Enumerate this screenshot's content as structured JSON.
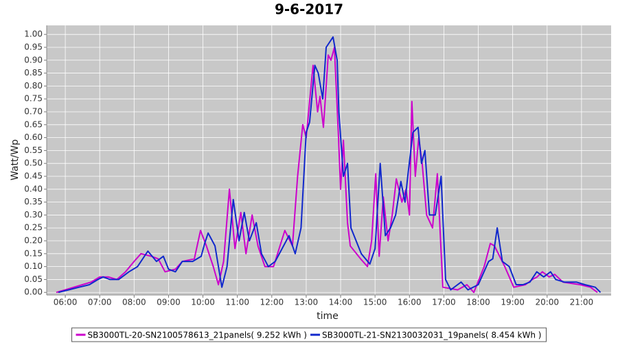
{
  "chart_data": {
    "type": "line",
    "title": "9-6-2017",
    "x_label": "time",
    "y_label": "Watt/Wp",
    "xlim": [
      5.46,
      21.86
    ],
    "ylim": [
      -0.01,
      1.035
    ],
    "xticks": [
      {
        "value": 6,
        "label": "06:00"
      },
      {
        "value": 7,
        "label": "07:00"
      },
      {
        "value": 8,
        "label": "08:00"
      },
      {
        "value": 9,
        "label": "09:00"
      },
      {
        "value": 10,
        "label": "10:00"
      },
      {
        "value": 11,
        "label": "11:00"
      },
      {
        "value": 12,
        "label": "12:00"
      },
      {
        "value": 13,
        "label": "13:00"
      },
      {
        "value": 14,
        "label": "14:00"
      },
      {
        "value": 15,
        "label": "15:00"
      },
      {
        "value": 16,
        "label": "16:00"
      },
      {
        "value": 17,
        "label": "17:00"
      },
      {
        "value": 18,
        "label": "18:00"
      },
      {
        "value": 19,
        "label": "19:00"
      },
      {
        "value": 20,
        "label": "20:00"
      },
      {
        "value": 21,
        "label": "21:00"
      }
    ],
    "yticks": [
      {
        "value": 0,
        "label": "0.00"
      },
      {
        "value": 0.05,
        "label": "0.05"
      },
      {
        "value": 0.1,
        "label": "0.10"
      },
      {
        "value": 0.15,
        "label": "0.15"
      },
      {
        "value": 0.2,
        "label": "0.20"
      },
      {
        "value": 0.25,
        "label": "0.25"
      },
      {
        "value": 0.3,
        "label": "0.30"
      },
      {
        "value": 0.35,
        "label": "0.35"
      },
      {
        "value": 0.4,
        "label": "0.40"
      },
      {
        "value": 0.45,
        "label": "0.45"
      },
      {
        "value": 0.5,
        "label": "0.50"
      },
      {
        "value": 0.55,
        "label": "0.55"
      },
      {
        "value": 0.6,
        "label": "0.60"
      },
      {
        "value": 0.65,
        "label": "0.65"
      },
      {
        "value": 0.7,
        "label": "0.70"
      },
      {
        "value": 0.75,
        "label": "0.75"
      },
      {
        "value": 0.8,
        "label": "0.80"
      },
      {
        "value": 0.85,
        "label": "0.85"
      },
      {
        "value": 0.9,
        "label": "0.90"
      },
      {
        "value": 0.95,
        "label": "0.95"
      },
      {
        "value": 1,
        "label": "1.00"
      }
    ],
    "grid": true,
    "legend_position": "bottom",
    "series": [
      {
        "name": "SB3000TL-20-SN2100578613_21panels( 9.252 kWh )",
        "color": "#cc00cc",
        "x": [
          5.74,
          6.0,
          6.25,
          6.5,
          6.75,
          7.0,
          7.25,
          7.5,
          7.75,
          8.0,
          8.2,
          8.5,
          8.7,
          8.9,
          9.2,
          9.4,
          9.75,
          9.93,
          10.1,
          10.3,
          10.45,
          10.6,
          10.77,
          10.93,
          11.1,
          11.25,
          11.43,
          11.6,
          11.8,
          12.05,
          12.38,
          12.6,
          12.75,
          12.9,
          13.0,
          13.2,
          13.33,
          13.4,
          13.5,
          13.64,
          13.72,
          13.82,
          13.94,
          14.0,
          14.08,
          14.2,
          14.28,
          14.58,
          14.78,
          14.9,
          15.02,
          15.12,
          15.24,
          15.38,
          15.5,
          15.62,
          15.78,
          15.9,
          16.0,
          16.07,
          16.17,
          16.27,
          16.37,
          16.5,
          16.67,
          16.81,
          16.97,
          17.4,
          17.67,
          17.87,
          18.17,
          18.35,
          18.47,
          18.77,
          19.03,
          19.37,
          19.57,
          19.71,
          19.86,
          20.06,
          20.22,
          20.46,
          20.96,
          21.26,
          21.46
        ],
        "values": [
          0.0,
          0.01,
          0.02,
          0.03,
          0.04,
          0.06,
          0.06,
          0.05,
          0.08,
          0.12,
          0.15,
          0.14,
          0.13,
          0.08,
          0.09,
          0.12,
          0.13,
          0.24,
          0.18,
          0.1,
          0.03,
          0.12,
          0.4,
          0.17,
          0.31,
          0.15,
          0.3,
          0.18,
          0.1,
          0.1,
          0.24,
          0.18,
          0.45,
          0.65,
          0.6,
          0.88,
          0.7,
          0.76,
          0.64,
          0.92,
          0.9,
          0.95,
          0.6,
          0.4,
          0.59,
          0.27,
          0.18,
          0.13,
          0.1,
          0.2,
          0.46,
          0.14,
          0.37,
          0.2,
          0.3,
          0.44,
          0.35,
          0.4,
          0.3,
          0.74,
          0.45,
          0.6,
          0.5,
          0.3,
          0.25,
          0.46,
          0.02,
          0.01,
          0.03,
          0.0,
          0.1,
          0.19,
          0.18,
          0.1,
          0.02,
          0.03,
          0.05,
          0.06,
          0.08,
          0.06,
          0.07,
          0.04,
          0.03,
          0.02,
          0.0
        ]
      },
      {
        "name": "SB3000TL-21-SN2130032031_19panels( 8.454 kWh )",
        "color": "#1028cc",
        "x": [
          5.8,
          6.1,
          6.4,
          6.7,
          6.95,
          7.1,
          7.3,
          7.55,
          7.85,
          8.1,
          8.3,
          8.4,
          8.65,
          8.85,
          9.0,
          9.2,
          9.4,
          9.7,
          9.95,
          10.05,
          10.15,
          10.35,
          10.55,
          10.7,
          10.88,
          11.05,
          11.2,
          11.35,
          11.55,
          11.7,
          11.9,
          12.1,
          12.5,
          12.68,
          12.85,
          13.0,
          13.1,
          13.25,
          13.35,
          13.48,
          13.58,
          13.78,
          13.9,
          13.95,
          14.08,
          14.2,
          14.3,
          14.45,
          14.6,
          14.85,
          15.0,
          15.15,
          15.3,
          15.45,
          15.6,
          15.75,
          15.87,
          15.95,
          16.1,
          16.25,
          16.35,
          16.45,
          16.58,
          16.75,
          16.92,
          17.05,
          17.2,
          17.5,
          17.7,
          18.0,
          18.3,
          18.42,
          18.55,
          18.7,
          18.9,
          19.1,
          19.3,
          19.5,
          19.7,
          19.9,
          20.1,
          20.25,
          20.5,
          20.85,
          21.1,
          21.4,
          21.55
        ],
        "values": [
          0.0,
          0.01,
          0.02,
          0.03,
          0.05,
          0.06,
          0.05,
          0.05,
          0.08,
          0.1,
          0.14,
          0.16,
          0.12,
          0.14,
          0.09,
          0.08,
          0.12,
          0.12,
          0.14,
          0.19,
          0.23,
          0.18,
          0.02,
          0.1,
          0.36,
          0.2,
          0.31,
          0.2,
          0.27,
          0.15,
          0.1,
          0.12,
          0.22,
          0.15,
          0.25,
          0.62,
          0.66,
          0.88,
          0.85,
          0.75,
          0.95,
          0.99,
          0.9,
          0.7,
          0.45,
          0.5,
          0.25,
          0.2,
          0.15,
          0.11,
          0.17,
          0.5,
          0.22,
          0.25,
          0.3,
          0.43,
          0.35,
          0.45,
          0.62,
          0.64,
          0.5,
          0.55,
          0.3,
          0.3,
          0.45,
          0.05,
          0.01,
          0.04,
          0.01,
          0.03,
          0.12,
          0.13,
          0.25,
          0.12,
          0.1,
          0.03,
          0.03,
          0.04,
          0.08,
          0.06,
          0.08,
          0.05,
          0.04,
          0.04,
          0.03,
          0.02,
          0.0
        ]
      }
    ]
  }
}
